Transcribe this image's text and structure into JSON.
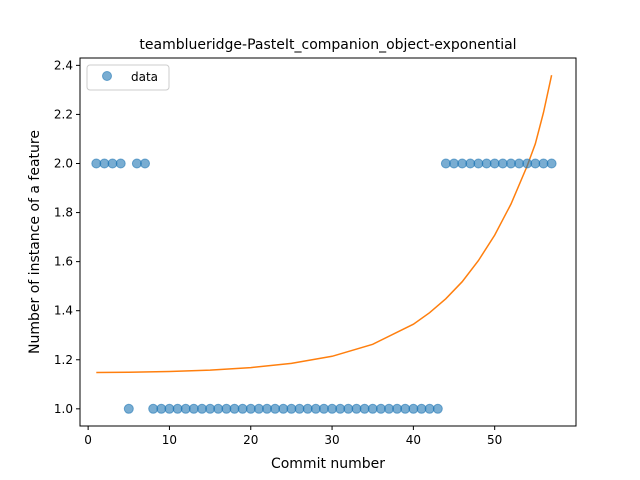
{
  "chart_data": {
    "type": "scatter",
    "title": "teamblueridge-PasteIt_companion_object-exponential",
    "xlabel": "Commit number",
    "ylabel": "Number of instance of a feature",
    "xlim": [
      -1,
      60
    ],
    "ylim": [
      0.93,
      2.43
    ],
    "x_ticks": [
      0,
      10,
      20,
      30,
      40,
      50
    ],
    "x_tick_labels": [
      "0",
      "10",
      "20",
      "30",
      "40",
      "50"
    ],
    "y_ticks": [
      1.0,
      1.2,
      1.4,
      1.6,
      1.8,
      2.0,
      2.2,
      2.4
    ],
    "y_tick_labels": [
      "1.0",
      "1.2",
      "1.4",
      "1.6",
      "1.8",
      "2.0",
      "2.2",
      "2.4"
    ],
    "grid": false,
    "legend_position": "top-left",
    "colors": {
      "data": "#1f77b4",
      "fit": "#ff7f0e"
    },
    "series": [
      {
        "name": "data",
        "kind": "scatter",
        "x": [
          1,
          2,
          3,
          4,
          5,
          6,
          7,
          8,
          9,
          10,
          11,
          12,
          13,
          14,
          15,
          16,
          17,
          18,
          19,
          20,
          21,
          22,
          23,
          24,
          25,
          26,
          27,
          28,
          29,
          30,
          31,
          32,
          33,
          34,
          35,
          36,
          37,
          38,
          39,
          40,
          41,
          42,
          43,
          44,
          45,
          46,
          47,
          48,
          49,
          50,
          51,
          52,
          53,
          54,
          55,
          56,
          57
        ],
        "y": [
          2,
          2,
          2,
          2,
          1,
          2,
          2,
          1,
          1,
          1,
          1,
          1,
          1,
          1,
          1,
          1,
          1,
          1,
          1,
          1,
          1,
          1,
          1,
          1,
          1,
          1,
          1,
          1,
          1,
          1,
          1,
          1,
          1,
          1,
          1,
          1,
          1,
          1,
          1,
          1,
          1,
          1,
          1,
          2,
          2,
          2,
          2,
          2,
          2,
          2,
          2,
          2,
          2,
          2,
          2,
          2,
          2
        ]
      },
      {
        "kind": "line",
        "x": [
          1,
          5,
          10,
          15,
          20,
          25,
          30,
          35,
          40,
          42,
          44,
          46,
          48,
          50,
          52,
          54,
          55,
          56,
          57
        ],
        "y": [
          1.148,
          1.149,
          1.152,
          1.158,
          1.168,
          1.185,
          1.214,
          1.263,
          1.345,
          1.392,
          1.449,
          1.518,
          1.604,
          1.708,
          1.835,
          1.99,
          2.08,
          2.208,
          2.36
        ]
      }
    ],
    "legend": [
      {
        "label": "data",
        "marker": "circle"
      }
    ]
  }
}
